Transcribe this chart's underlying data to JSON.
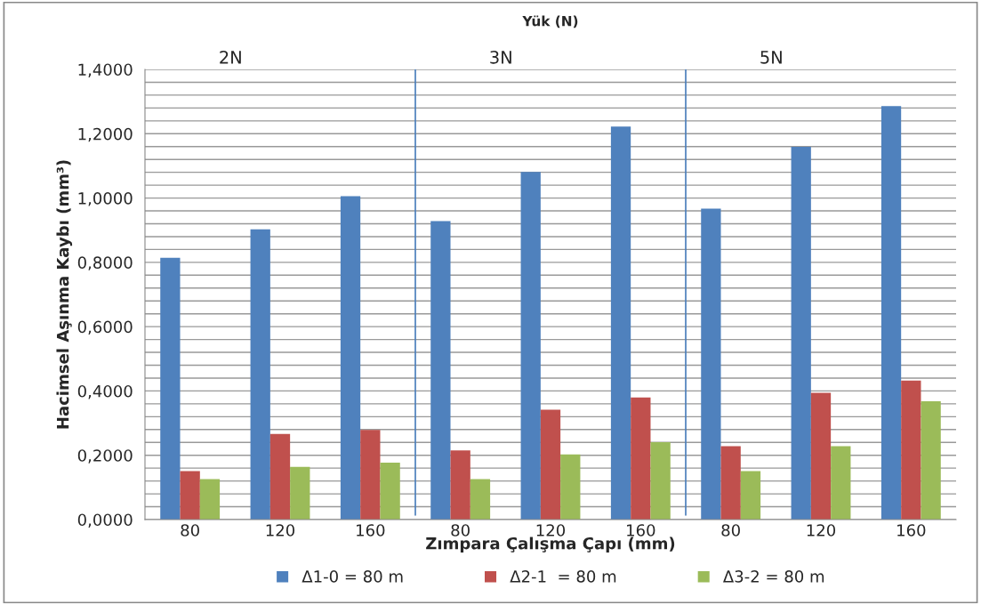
{
  "chart_data": {
    "type": "bar",
    "xlabel": "Zımpara Çalışma Çapı (mm)",
    "ylabel": "Hacimsel Aşınma Kaybı (mm³)",
    "categories": [
      "80",
      "120",
      "160",
      "80",
      "120",
      "160",
      "80",
      "120",
      "160"
    ],
    "series": [
      {
        "name": "Δ1-0 = 80 m",
        "color": "#4f81bd",
        "values": [
          0.814,
          0.903,
          1.006,
          0.928,
          1.081,
          1.222,
          0.967,
          1.159,
          1.286
        ]
      },
      {
        "name": "Δ2-1  = 80 m",
        "color": "#c0504d",
        "values": [
          0.151,
          0.266,
          0.279,
          0.215,
          0.342,
          0.38,
          0.228,
          0.394,
          0.432
        ]
      },
      {
        "name": "Δ3-2 = 80 m",
        "color": "#9bbb59",
        "values": [
          0.126,
          0.164,
          0.177,
          0.126,
          0.203,
          0.241,
          0.151,
          0.228,
          0.368
        ]
      }
    ],
    "annotations": [
      "Yük (N)",
      "2N",
      "3N",
      "5N"
    ],
    "ylim": [
      0,
      1.4
    ],
    "yticks": [
      {
        "value": 0,
        "label": "0,0000"
      },
      {
        "value": 0.04,
        "label": null
      },
      {
        "value": 0.08,
        "label": null
      },
      {
        "value": 0.12,
        "label": null
      },
      {
        "value": 0.16,
        "label": null
      },
      {
        "value": 0.2,
        "label": "0,2000"
      },
      {
        "value": 0.24,
        "label": null
      },
      {
        "value": 0.28,
        "label": null
      },
      {
        "value": 0.32,
        "label": null
      },
      {
        "value": 0.36,
        "label": null
      },
      {
        "value": 0.4,
        "label": "0,4000"
      },
      {
        "value": 0.44,
        "label": null
      },
      {
        "value": 0.48,
        "label": null
      },
      {
        "value": 0.52,
        "label": null
      },
      {
        "value": 0.56,
        "label": null
      },
      {
        "value": 0.6,
        "label": "0,6000"
      },
      {
        "value": 0.64,
        "label": null
      },
      {
        "value": 0.68,
        "label": null
      },
      {
        "value": 0.72,
        "label": null
      },
      {
        "value": 0.76,
        "label": null
      },
      {
        "value": 0.8,
        "label": "0,8000"
      },
      {
        "value": 0.84,
        "label": null
      },
      {
        "value": 0.88,
        "label": null
      },
      {
        "value": 0.92,
        "label": null
      },
      {
        "value": 0.96,
        "label": null
      },
      {
        "value": 1.0,
        "label": "1,0000"
      },
      {
        "value": 1.04,
        "label": null
      },
      {
        "value": 1.08,
        "label": null
      },
      {
        "value": 1.12,
        "label": null
      },
      {
        "value": 1.16,
        "label": null
      },
      {
        "value": 1.2,
        "label": "1,2000"
      },
      {
        "value": 1.24,
        "label": null
      },
      {
        "value": 1.28,
        "label": null
      },
      {
        "value": 1.32,
        "label": null
      },
      {
        "value": 1.36,
        "label": null
      },
      {
        "value": 1.4,
        "label": "1,4000"
      }
    ],
    "grid": "y",
    "legend": "bottom"
  }
}
